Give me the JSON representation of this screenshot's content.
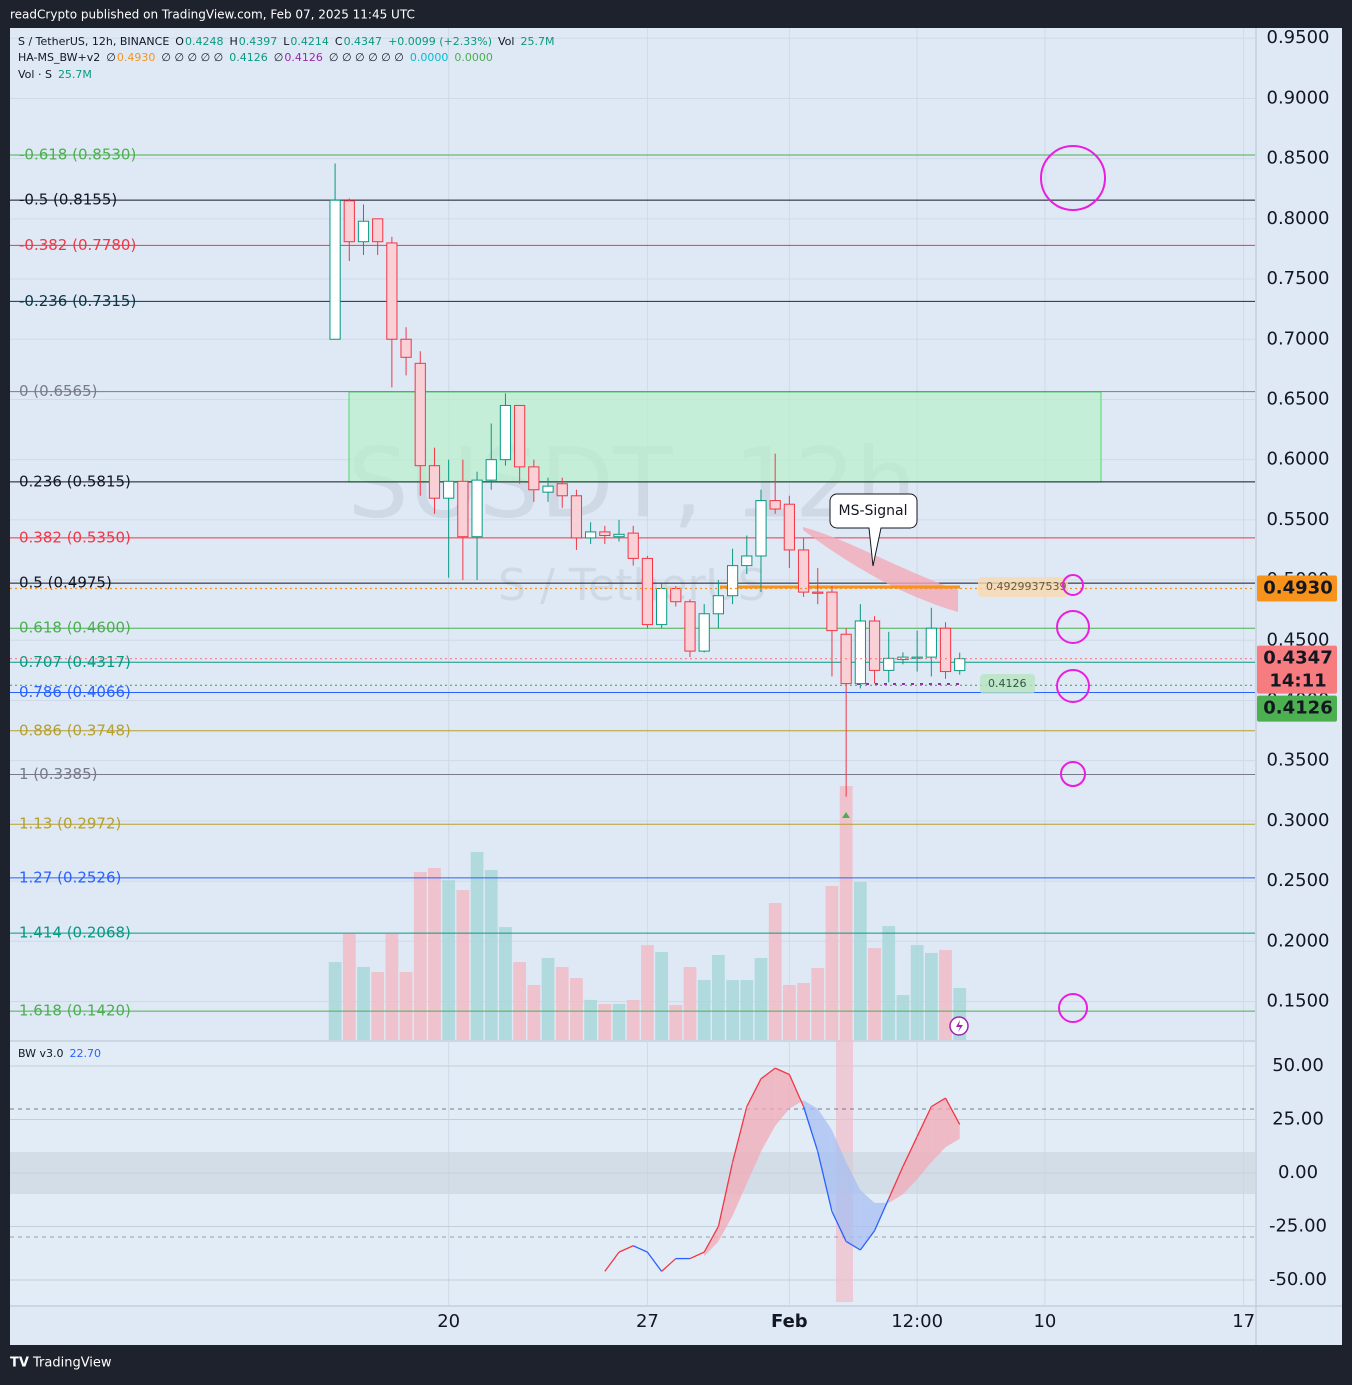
{
  "header": {
    "publisher": "readCrypto published on TradingView.com, Feb 07, 2025 11:45 UTC",
    "brand": "TradingView"
  },
  "legend": {
    "row1": [
      {
        "text": "S / TetherUS, 12h, BINANCE",
        "color": "#131722"
      },
      {
        "text": "O",
        "color": "#131722"
      },
      {
        "text": "0.4248",
        "color": "#089981"
      },
      {
        "text": "H",
        "color": "#131722"
      },
      {
        "text": "0.4397",
        "color": "#089981"
      },
      {
        "text": "L",
        "color": "#131722"
      },
      {
        "text": "0.4214",
        "color": "#089981"
      },
      {
        "text": "C",
        "color": "#131722"
      },
      {
        "text": "0.4347",
        "color": "#089981"
      },
      {
        "text": "+0.0099 (+2.33%)",
        "color": "#089981"
      },
      {
        "text": "Vol",
        "color": "#131722"
      },
      {
        "text": "25.7M",
        "color": "#089981"
      }
    ],
    "row2": [
      {
        "text": "HA-MS_BW+v2",
        "color": "#131722"
      },
      {
        "text": "∅",
        "color": "#131722"
      },
      {
        "text": "0.4930",
        "color": "#f7931a"
      },
      {
        "text": "∅ ∅ ∅ ∅ ∅",
        "color": "#131722"
      },
      {
        "text": "0.4126",
        "color": "#089981"
      },
      {
        "text": "∅",
        "color": "#131722"
      },
      {
        "text": "0.4126",
        "color": "#9c27b0"
      },
      {
        "text": "∅ ∅ ∅ ∅ ∅ ∅",
        "color": "#131722"
      },
      {
        "text": "0.0000",
        "color": "#00bcd4"
      },
      {
        "text": "0.0000",
        "color": "#4caf50"
      }
    ]
  },
  "annotations": {
    "ms_signal": "MS-Signal",
    "level_label": "0.4929937539",
    "support_label": "0.4126"
  },
  "chart_data": [
    {
      "type": "candlestick",
      "title": "S / TetherUS, 12h, BINANCE",
      "watermark": "SUSDT, 12h",
      "watermark_sub": "S / TetherUS",
      "up_color": "#089981",
      "down_color": "#f23645",
      "open": [
        0.7,
        0.815,
        0.781,
        0.8,
        0.78,
        0.7,
        0.68,
        0.595,
        0.568,
        0.582,
        0.536,
        0.583,
        0.6,
        0.645,
        0.594,
        0.573,
        0.58,
        0.57,
        0.535,
        0.54,
        0.536,
        0.539,
        0.518,
        0.463,
        0.493,
        0.482,
        0.441,
        0.472,
        0.487,
        0.512,
        0.52,
        0.566,
        0.563,
        0.525,
        0.49,
        0.49,
        0.455,
        0.414,
        0.466,
        0.425,
        0.434,
        0.435,
        0.436,
        0.46,
        0.4248
      ],
      "high": [
        0.846,
        0.817,
        0.812,
        0.8,
        0.785,
        0.71,
        0.69,
        0.61,
        0.6,
        0.6,
        0.59,
        0.63,
        0.655,
        0.645,
        0.6,
        0.585,
        0.585,
        0.575,
        0.548,
        0.545,
        0.55,
        0.545,
        0.52,
        0.497,
        0.495,
        0.484,
        0.48,
        0.5,
        0.526,
        0.537,
        0.575,
        0.605,
        0.57,
        0.535,
        0.51,
        0.495,
        0.46,
        0.48,
        0.47,
        0.457,
        0.44,
        0.458,
        0.477,
        0.465,
        0.4397
      ],
      "low": [
        0.7,
        0.765,
        0.77,
        0.77,
        0.66,
        0.67,
        0.57,
        0.555,
        0.502,
        0.5,
        0.5,
        0.575,
        0.595,
        0.58,
        0.565,
        0.565,
        0.56,
        0.525,
        0.53,
        0.53,
        0.532,
        0.512,
        0.46,
        0.46,
        0.478,
        0.436,
        0.44,
        0.46,
        0.48,
        0.505,
        0.49,
        0.555,
        0.51,
        0.486,
        0.48,
        0.42,
        0.32,
        0.41,
        0.414,
        0.415,
        0.43,
        0.424,
        0.42,
        0.418,
        0.4214
      ],
      "close": [
        0.8155,
        0.781,
        0.798,
        0.781,
        0.7,
        0.685,
        0.595,
        0.568,
        0.582,
        0.536,
        0.583,
        0.6,
        0.645,
        0.594,
        0.575,
        0.578,
        0.57,
        0.535,
        0.54,
        0.537,
        0.538,
        0.518,
        0.463,
        0.493,
        0.482,
        0.441,
        0.472,
        0.487,
        0.512,
        0.52,
        0.566,
        0.559,
        0.525,
        0.49,
        0.489,
        0.458,
        0.414,
        0.466,
        0.425,
        0.435,
        0.436,
        0.436,
        0.46,
        0.424,
        0.4347
      ],
      "volume": {
        "name": "Vol · S",
        "values": [
          38.5,
          52.4,
          36.1,
          33.6,
          52.4,
          33.6,
          83.0,
          85.0,
          79.0,
          74.1,
          92.9,
          84.0,
          55.8,
          38.5,
          27.2,
          40.5,
          36.1,
          30.6,
          19.8,
          17.8,
          17.8,
          19.8,
          46.9,
          43.5,
          17.3,
          36.1,
          29.6,
          42.0,
          29.6,
          29.6,
          40.5,
          67.7,
          27.2,
          28.2,
          35.6,
          76.1,
          125.5,
          78.1,
          45.4,
          56.3,
          22.2,
          46.9,
          43.0,
          44.5,
          25.7
        ],
        "value_label": "25.7M",
        "up_color": "#a9d7d9",
        "down_color": "#f1bcc7"
      },
      "xlim": [
        -22.9,
        64.8
      ],
      "xticks": [
        {
          "value": 8,
          "label": "20"
        },
        {
          "value": 22,
          "label": "27"
        },
        {
          "value": 32,
          "label": "Feb"
        },
        {
          "value": 41,
          "label": "12:00"
        },
        {
          "value": 50,
          "label": "10"
        },
        {
          "value": 64,
          "label": "17"
        }
      ],
      "ylim": [
        0.118,
        0.961
      ],
      "yticks": [
        {
          "value": 0.95,
          "label": "0.9500"
        },
        {
          "value": 0.9,
          "label": "0.9000"
        },
        {
          "value": 0.85,
          "label": "0.8500"
        },
        {
          "value": 0.8,
          "label": "0.8000"
        },
        {
          "value": 0.75,
          "label": "0.7500"
        },
        {
          "value": 0.7,
          "label": "0.7000"
        },
        {
          "value": 0.65,
          "label": "0.6500"
        },
        {
          "value": 0.6,
          "label": "0.6000"
        },
        {
          "value": 0.55,
          "label": "0.5500"
        },
        {
          "value": 0.5,
          "label": "0.5000"
        },
        {
          "value": 0.45,
          "label": "0.4500"
        },
        {
          "value": 0.4,
          "label": "0.4000"
        },
        {
          "value": 0.35,
          "label": "0.3500"
        },
        {
          "value": 0.3,
          "label": "0.3000"
        },
        {
          "value": 0.25,
          "label": "0.2500"
        },
        {
          "value": 0.2,
          "label": "0.2000"
        },
        {
          "value": 0.15,
          "label": "0.1500"
        }
      ],
      "grid": true,
      "fib_levels": [
        {
          "label": "-0.618 (0.8530)",
          "value": 0.853,
          "color": "#4caf50"
        },
        {
          "label": "-0.5 (0.8155)",
          "value": 0.8155,
          "color": "#131722"
        },
        {
          "label": "-0.382 (0.7780)",
          "value": 0.778,
          "color": "#f23645"
        },
        {
          "label": "-0.236 (0.7315)",
          "value": 0.7315,
          "color": "#0c3547"
        },
        {
          "label": "0 (0.6565)",
          "value": 0.6565,
          "color": "#787b86"
        },
        {
          "label": "0.236 (0.5815)",
          "value": 0.5815,
          "color": "#131722"
        },
        {
          "label": "0.382 (0.5350)",
          "value": 0.535,
          "color": "#f23645"
        },
        {
          "label": "0.5 (0.4975)",
          "value": 0.4975,
          "color": "#131722"
        },
        {
          "label": "0.618 (0.4600)",
          "value": 0.46,
          "color": "#4caf50"
        },
        {
          "label": "0.707 (0.4317)",
          "value": 0.4317,
          "color": "#089981"
        },
        {
          "label": "0.786 (0.4066)",
          "value": 0.4066,
          "color": "#2962ff"
        },
        {
          "label": "0.886 (0.3748)",
          "value": 0.3748,
          "color": "#b5a030"
        },
        {
          "label": "1 (0.3385)",
          "value": 0.3385,
          "color": "#787b86"
        },
        {
          "label": "1.13 (0.2972)",
          "value": 0.2972,
          "color": "#b5a030"
        },
        {
          "label": "1.27 (0.2526)",
          "value": 0.2526,
          "color": "#2962ff"
        },
        {
          "label": "1.414 (0.2068)",
          "value": 0.2068,
          "color": "#089981"
        },
        {
          "label": "1.618 (0.1420)",
          "value": 0.142,
          "color": "#4caf50"
        }
      ],
      "price_labels": [
        {
          "value": 0.493,
          "label": "0.4930",
          "color": "#f7931a"
        },
        {
          "value": 0.4347,
          "label": "0.4347",
          "sub": "14:11",
          "color": "#f77c80"
        },
        {
          "value": 0.4126,
          "label": "0.4126",
          "color": "#4caf50"
        }
      ]
    },
    {
      "type": "line",
      "title": "BW v3.0",
      "value_label": "22.70",
      "series": [
        {
          "name": "BW",
          "values": [
            null,
            null,
            null,
            null,
            null,
            null,
            null,
            null,
            null,
            null,
            null,
            null,
            null,
            null,
            null,
            null,
            null,
            null,
            null,
            -46,
            -37,
            -34,
            -37,
            -46,
            -40,
            -40,
            -37,
            -25,
            5,
            31,
            44,
            49,
            46,
            31,
            10,
            -18,
            -32,
            -36,
            -27,
            -12,
            3,
            17,
            31,
            35,
            22.7
          ],
          "up_color": "#f23645",
          "down_color": "#2962ff"
        },
        {
          "name": "Signal",
          "values": [
            null,
            null,
            null,
            null,
            null,
            null,
            null,
            null,
            null,
            null,
            null,
            null,
            null,
            null,
            null,
            null,
            null,
            null,
            null,
            null,
            null,
            null,
            null,
            null,
            null,
            null,
            -39,
            -32,
            -20,
            -5,
            10,
            22,
            30,
            34,
            30,
            20,
            5,
            -8,
            -14,
            -14,
            -10,
            -3,
            5,
            12,
            16
          ]
        }
      ],
      "ylim": [
        -61.7,
        61.2
      ],
      "yticks": [
        {
          "value": 50,
          "label": "50.00"
        },
        {
          "value": 25,
          "label": "25.00"
        },
        {
          "value": 0,
          "label": "0.00"
        },
        {
          "value": -25,
          "label": "-25.00"
        },
        {
          "value": -50,
          "label": "-50.00"
        }
      ]
    }
  ]
}
